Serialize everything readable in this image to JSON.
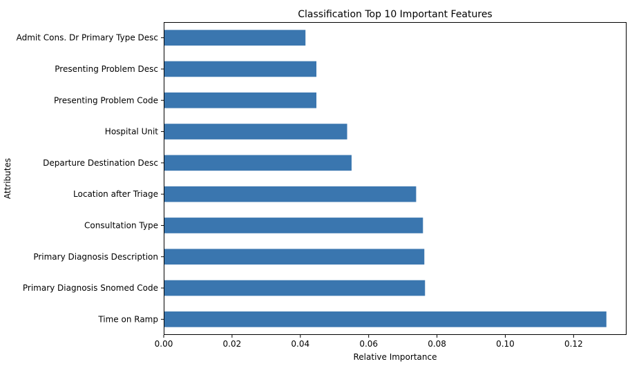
{
  "chart_data": {
    "type": "bar",
    "orientation": "horizontal",
    "title": "Classification Top 10 Important Features",
    "xlabel": "Relative Importance",
    "ylabel": "Attributes",
    "xlim": [
      0,
      0.1355
    ],
    "xticks": [
      0.0,
      0.02,
      0.04,
      0.06,
      0.08,
      0.1,
      0.12
    ],
    "xtick_labels": [
      "0.00",
      "0.02",
      "0.04",
      "0.06",
      "0.08",
      "0.10",
      "0.12"
    ],
    "bar_color": "#3a76af",
    "grid": false,
    "categories": [
      "Admit Cons. Dr Primary Type Desc",
      "Presenting Problem Desc",
      "Presenting Problem Code",
      "Hospital Unit",
      "Departure Destination Desc",
      "Location after Triage",
      "Consultation Type",
      "Primary Diagnosis Description",
      "Primary Diagnosis Snomed Code",
      "Time on Ramp"
    ],
    "values": [
      0.0415,
      0.0447,
      0.0447,
      0.0537,
      0.055,
      0.0739,
      0.0759,
      0.0763,
      0.0765,
      0.1296
    ]
  }
}
